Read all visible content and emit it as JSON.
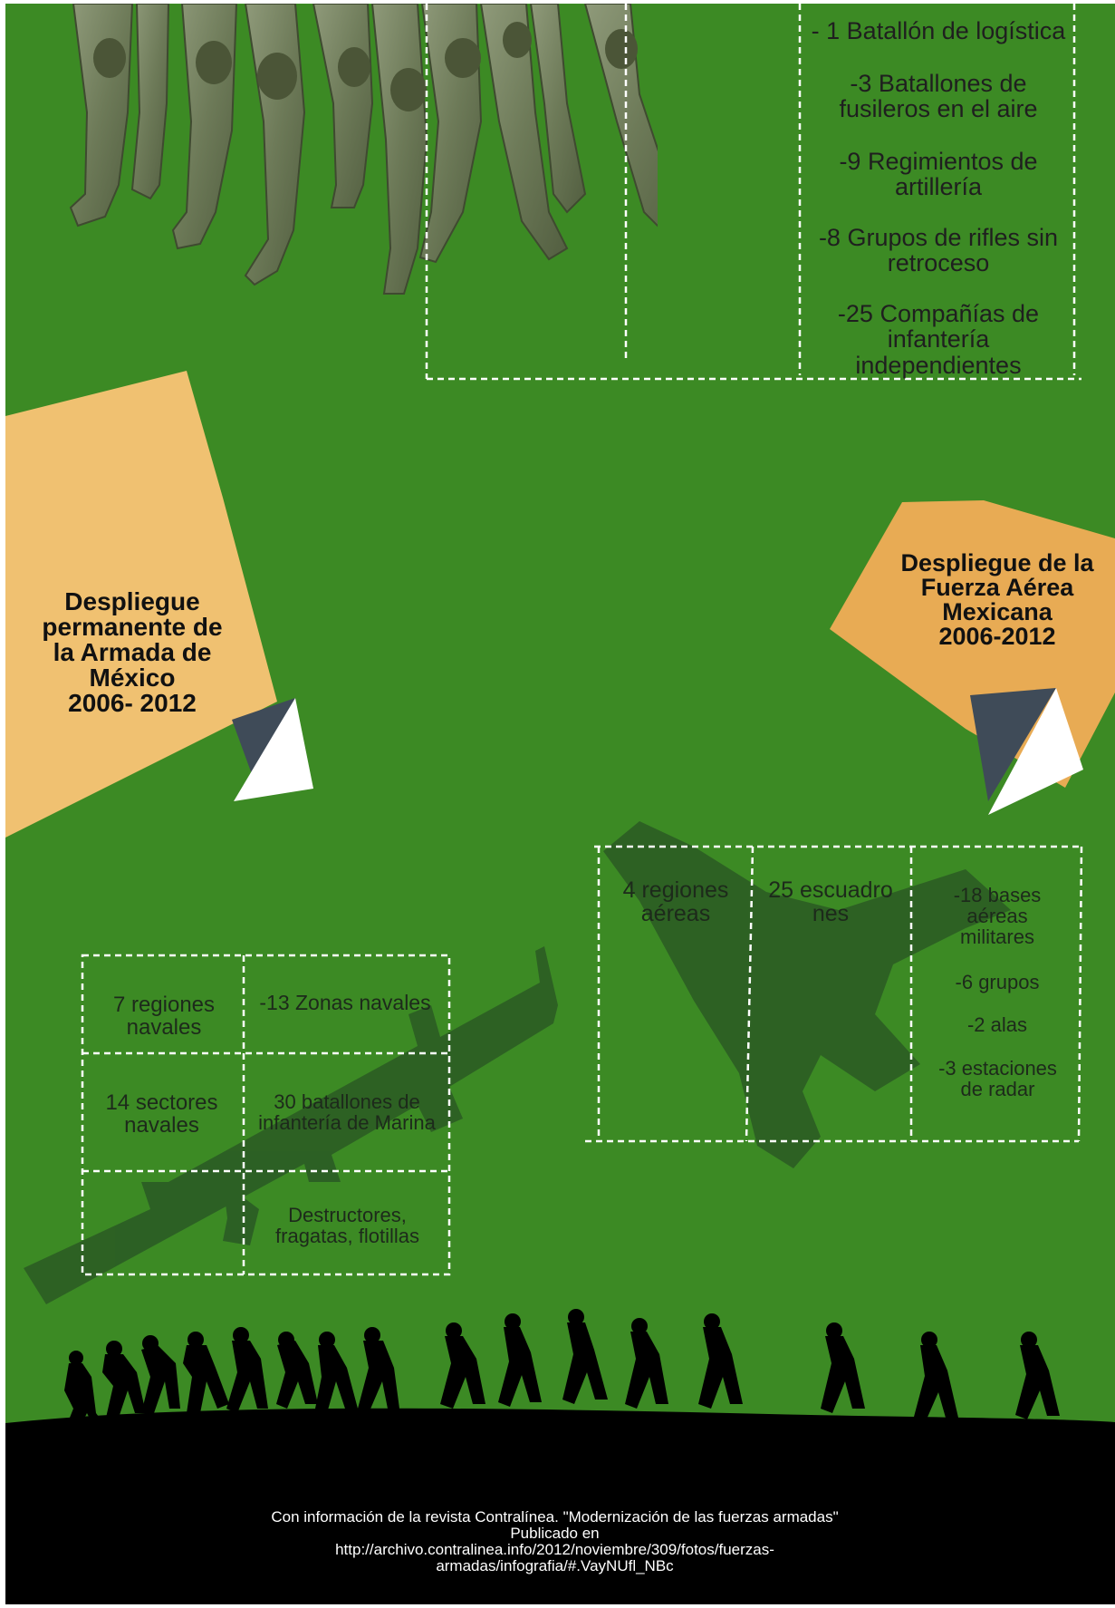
{
  "army": {
    "items": [
      "- 1 Batallón de logística",
      "-3 Batallones de fusileros en el aire",
      "-9 Regimientos de artillería",
      "-8 Grupos de rifles sin retroceso",
      "-25 Compañías de infantería independientes"
    ]
  },
  "navy": {
    "title_lines": [
      "Despliegue",
      "permanente de",
      "la Armada de",
      "México",
      "2006- 2012"
    ],
    "cells": {
      "regiones": "7 regiones navales",
      "zonas": "-13 Zonas navales",
      "sectores": "14 sectores navales",
      "batallones": "30 batallones de infantería de Marina",
      "buques": "Destructores, fragatas, flotillas"
    }
  },
  "airforce": {
    "title_lines": [
      "Despliegue de la",
      "Fuerza Aérea",
      "Mexicana",
      "2006-2012"
    ],
    "cells": {
      "regiones": "4 regiones aéreas",
      "escuadrones": "25 escuadrones",
      "bases": "-18 bases aéreas militares",
      "grupos": "-6 grupos",
      "alas": "-2 alas",
      "radar": "-3 estaciones de radar"
    }
  },
  "footer": {
    "lines": [
      "Con información de la revista  Contralínea. \"Modernización de las fuerzas armadas\"",
      "Publicado en",
      "http://archivo.contralinea.info/2012/noviembre/309/fotos/fuerzas-",
      "armadas/infografia/#.VayNUfl_NBc"
    ]
  },
  "colors": {
    "background": "#3c8a24",
    "plate_left": "#f0c171",
    "plate_right": "#e8ab54",
    "fold_dark": "#3f4b58",
    "fold_light": "#ffffff",
    "silhouette": "#2b5c24",
    "footer": "#000000"
  },
  "icons": [
    "soldier-boots-photo",
    "rifle-silhouette",
    "fighter-jet-silhouette",
    "marching-soldiers-silhouette"
  ]
}
